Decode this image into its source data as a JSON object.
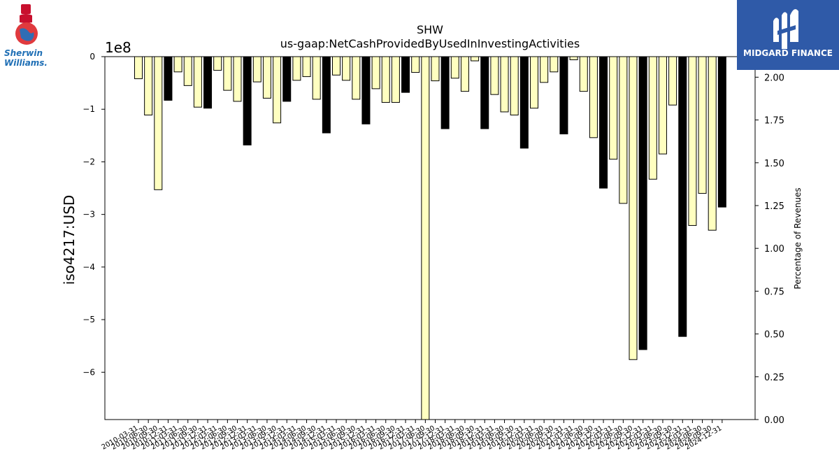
{
  "brand_left": {
    "line1": "Sherwin",
    "line2": "Williams."
  },
  "brand_right": {
    "name": "MIDGARD FINANCE"
  },
  "colors": {
    "bar_default": "#ffffc0",
    "bar_highlight": "#000000",
    "bar_edge": "#000000",
    "logo_right_bg": "#2f5aa8"
  },
  "chart_data": {
    "type": "bar",
    "title": "SHW",
    "subtitle": "us-gaap:NetCashProvidedByUsedInInvestingActivities",
    "ylabel": "iso4217:USD",
    "y_offset_label": "1e8",
    "y2label": "Percentage of Revenues",
    "ylim": [
      -690000000,
      0
    ],
    "y2lim": [
      0,
      2.12
    ],
    "yticks": [
      0,
      -1,
      -2,
      -3,
      -4,
      -5,
      -6
    ],
    "yticks_labels": [
      "0",
      "−1",
      "−2",
      "−3",
      "−4",
      "−5",
      "−6"
    ],
    "y2ticks_labels": [
      "0.00",
      "0.25",
      "0.50",
      "0.75",
      "1.00",
      "1.25",
      "1.50",
      "1.75",
      "2.00"
    ],
    "y2ticks": [
      0,
      0.25,
      0.5,
      0.75,
      1.0,
      1.25,
      1.5,
      1.75,
      2.0
    ],
    "grid": false,
    "categories": [
      "2010-03-31",
      "2010-06-30",
      "2010-09-30",
      "2010-12-31",
      "2011-03-31",
      "2011-06-30",
      "2011-09-30",
      "2011-12-31",
      "2012-03-31",
      "2012-06-30",
      "2012-09-30",
      "2012-12-31",
      "2013-03-31",
      "2013-06-30",
      "2013-09-30",
      "2013-12-31",
      "2014-03-31",
      "2014-06-30",
      "2014-09-30",
      "2014-12-31",
      "2015-03-31",
      "2015-06-30",
      "2015-09-30",
      "2015-12-31",
      "2016-03-31",
      "2016-06-30",
      "2016-09-30",
      "2016-12-31",
      "2017-03-31",
      "2017-06-30",
      "2017-09-30",
      "2017-12-31",
      "2018-03-31",
      "2018-06-30",
      "2018-09-30",
      "2018-12-31",
      "2019-03-31",
      "2019-06-30",
      "2019-09-30",
      "2019-12-31",
      "2020-03-31",
      "2020-06-30",
      "2020-09-30",
      "2020-12-31",
      "2021-03-31",
      "2021-06-30",
      "2021-09-30",
      "2021-12-31",
      "2022-03-31",
      "2022-06-30",
      "2022-09-30",
      "2022-12-31",
      "2023-03-31",
      "2023-06-30",
      "2023-09-30",
      "2023-12-31",
      "2024-03-31",
      "2024-06-30",
      "2024-09-30",
      "2024-12-31"
    ],
    "values": [
      -42000000,
      -111000000,
      -253000000,
      -83000000,
      -29000000,
      -55000000,
      -96000000,
      -98000000,
      -26000000,
      -64000000,
      -85000000,
      -168000000,
      -48000000,
      -79000000,
      -126000000,
      -85000000,
      -45000000,
      -38000000,
      -81000000,
      -145000000,
      -35000000,
      -45000000,
      -81000000,
      -128000000,
      -61000000,
      -87000000,
      -87000000,
      -68000000,
      -30000000,
      -690000000,
      -46000000,
      -137000000,
      -41000000,
      -66000000,
      -8000000,
      -137000000,
      -72000000,
      -105000000,
      -111000000,
      -174000000,
      -98000000,
      -49000000,
      -29000000,
      -147000000,
      -6000000,
      -66000000,
      -154000000,
      -250000000,
      -195000000,
      -279000000,
      -576000000,
      -557000000,
      -233000000,
      -185000000,
      -92000000,
      -532000000,
      -321000000,
      -260000000,
      -330000000,
      -286000000
    ],
    "highlight": [
      false,
      false,
      false,
      true,
      false,
      false,
      false,
      true,
      false,
      false,
      false,
      true,
      false,
      false,
      false,
      true,
      false,
      false,
      false,
      true,
      false,
      false,
      false,
      true,
      false,
      false,
      false,
      true,
      false,
      false,
      false,
      true,
      false,
      false,
      false,
      true,
      false,
      false,
      false,
      true,
      false,
      false,
      false,
      true,
      false,
      false,
      false,
      true,
      false,
      false,
      false,
      true,
      false,
      false,
      false,
      true,
      false,
      false,
      false,
      true
    ]
  }
}
